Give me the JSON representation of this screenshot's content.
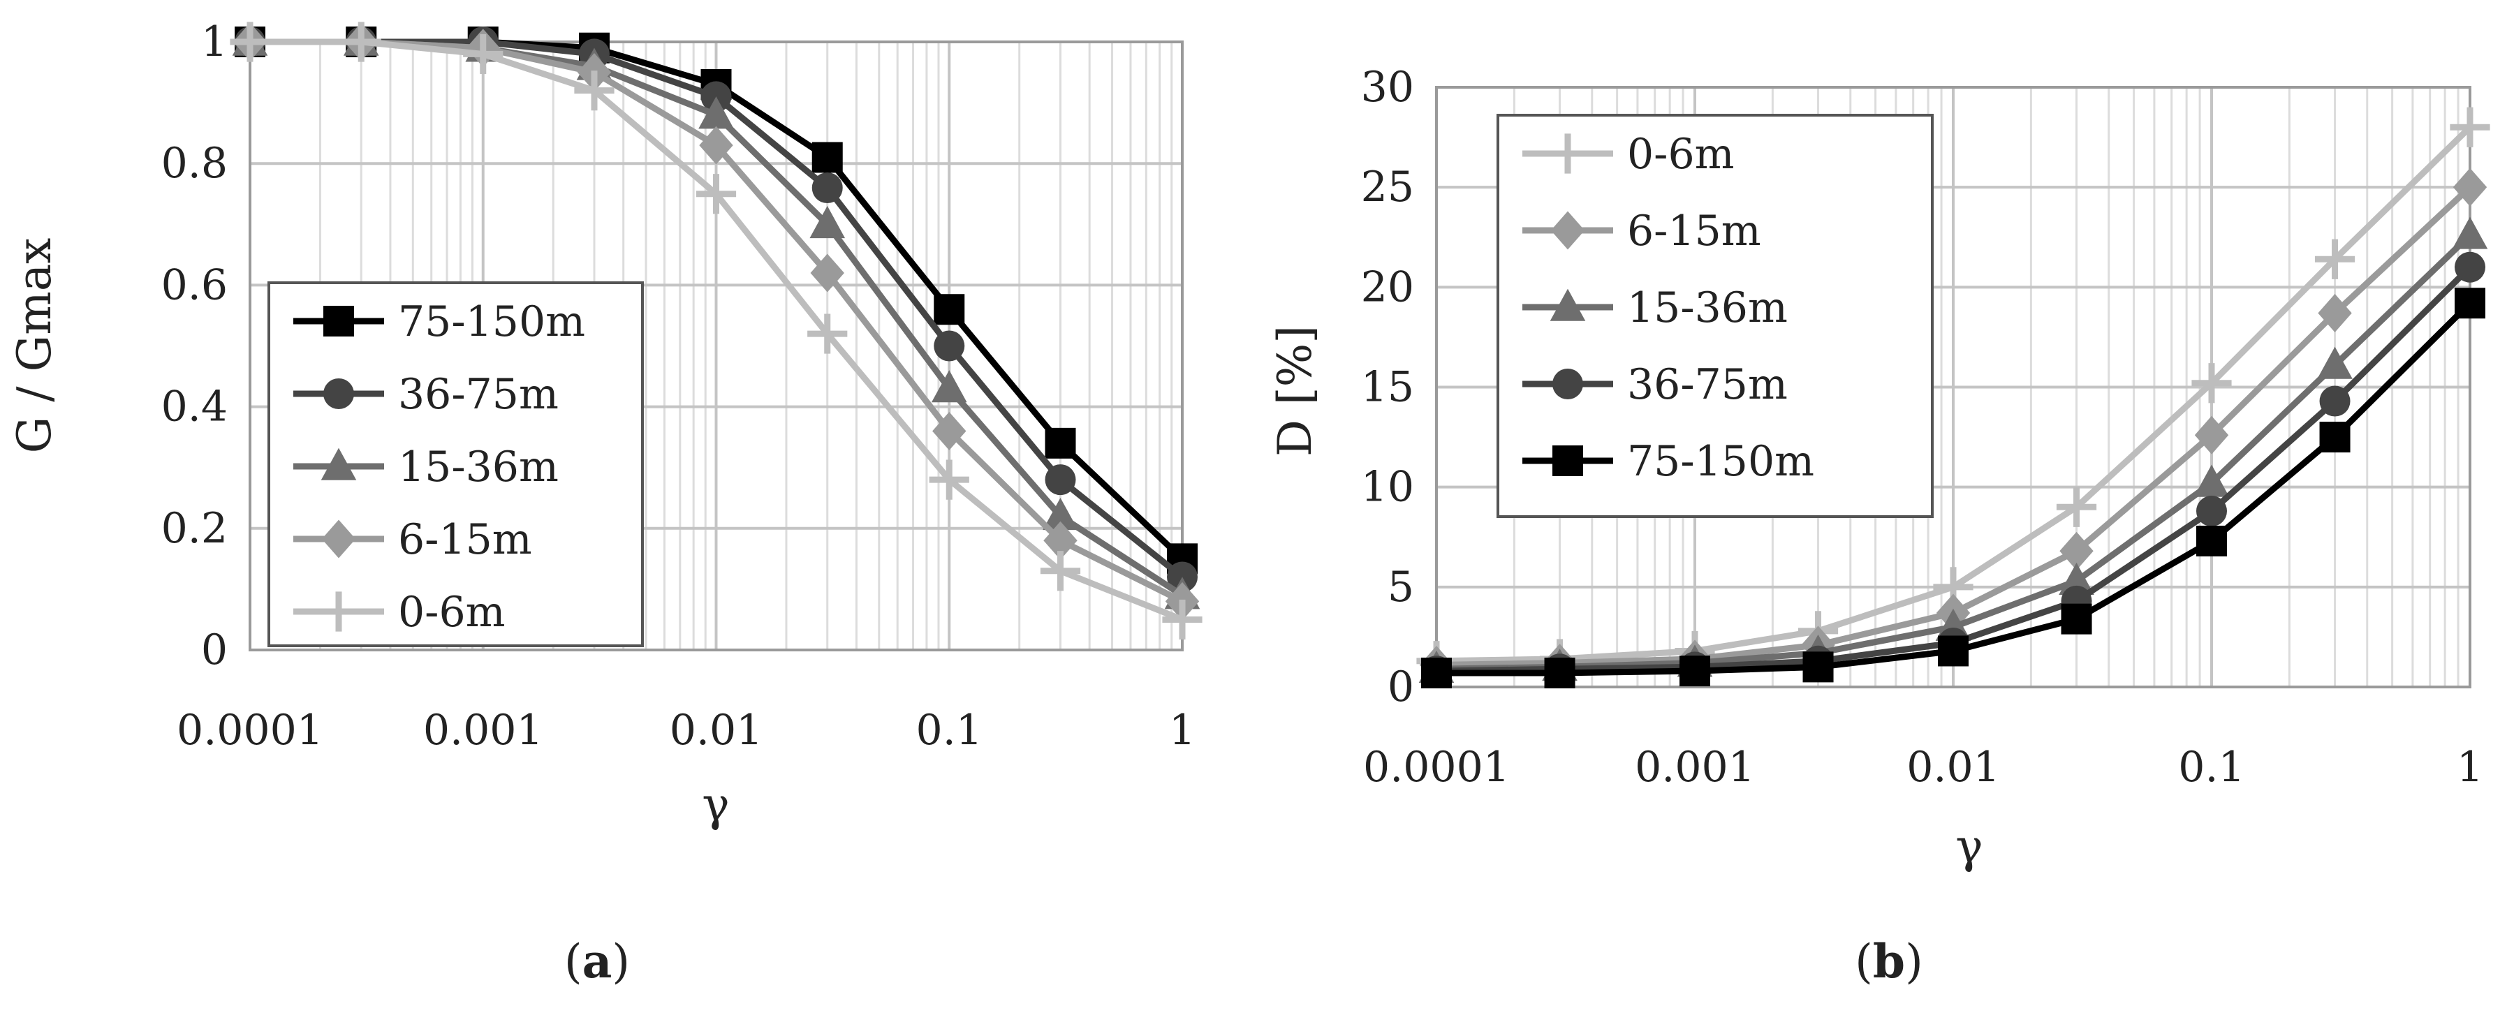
{
  "chart_data": [
    {
      "type": "line",
      "panel_label": "(a)",
      "panel_letter": "a",
      "xlabel": "γ",
      "ylabel": "G / Gmax",
      "x_scale": "log",
      "xlim": [
        0.0001,
        1
      ],
      "ylim": [
        0,
        1
      ],
      "x_ticks": [
        0.0001,
        0.001,
        0.01,
        0.1,
        1
      ],
      "x_tick_labels": [
        "0.0001",
        "0.001",
        "0.01",
        "0.1",
        "1"
      ],
      "y_ticks": [
        0,
        0.2,
        0.4,
        0.6,
        0.8,
        1
      ],
      "y_tick_labels": [
        "0",
        "0.2",
        "0.4",
        "0.6",
        "0.8",
        "1"
      ],
      "grid": true,
      "legend_position": "lower-left",
      "x": [
        0.0001,
        0.0003,
        0.001,
        0.003,
        0.01,
        0.03,
        0.1,
        0.3,
        1
      ],
      "series": [
        {
          "name": "75-150m",
          "marker": "square",
          "color": "#000000",
          "values": [
            1,
            1,
            1,
            0.99,
            0.93,
            0.81,
            0.56,
            0.34,
            0.15
          ]
        },
        {
          "name": "36-75m",
          "marker": "circle",
          "color": "#444444",
          "values": [
            1,
            1,
            1,
            0.98,
            0.91,
            0.76,
            0.5,
            0.28,
            0.12
          ]
        },
        {
          "name": "15-36m",
          "marker": "triangle",
          "color": "#6e6e6e",
          "values": [
            1,
            1,
            0.99,
            0.96,
            0.88,
            0.7,
            0.43,
            0.22,
            0.09
          ]
        },
        {
          "name": "6-15m",
          "marker": "diamond",
          "color": "#9a9a9a",
          "values": [
            1,
            1,
            0.99,
            0.95,
            0.83,
            0.62,
            0.36,
            0.18,
            0.08
          ]
        },
        {
          "name": "0-6m",
          "marker": "plus",
          "color": "#bdbdbd",
          "values": [
            1,
            1,
            0.98,
            0.92,
            0.75,
            0.52,
            0.28,
            0.13,
            0.05
          ]
        }
      ]
    },
    {
      "type": "line",
      "panel_label": "(b)",
      "panel_letter": "b",
      "xlabel": "γ",
      "ylabel": "D [%]",
      "x_scale": "log",
      "xlim": [
        0.0001,
        1
      ],
      "ylim": [
        0,
        30
      ],
      "x_ticks": [
        0.0001,
        0.001,
        0.01,
        0.1,
        1
      ],
      "x_tick_labels": [
        "0.0001",
        "0.001",
        "0.01",
        "0.1",
        "1"
      ],
      "y_ticks": [
        0,
        5,
        10,
        15,
        20,
        25,
        30
      ],
      "y_tick_labels": [
        "0",
        "5",
        "10",
        "15",
        "20",
        "25",
        "30"
      ],
      "grid": true,
      "legend_position": "upper-left",
      "x": [
        0.0001,
        0.0003,
        0.001,
        0.003,
        0.01,
        0.03,
        0.1,
        0.3,
        1
      ],
      "series": [
        {
          "name": "0-6m",
          "marker": "plus",
          "color": "#bdbdbd",
          "values": [
            1.3,
            1.4,
            1.8,
            2.8,
            5.0,
            9.0,
            15.2,
            21.4,
            28.0
          ]
        },
        {
          "name": "6-15m",
          "marker": "diamond",
          "color": "#9a9a9a",
          "values": [
            1.1,
            1.2,
            1.4,
            2.1,
            3.7,
            6.8,
            12.6,
            18.7,
            25.0
          ]
        },
        {
          "name": "15-36m",
          "marker": "triangle",
          "color": "#6e6e6e",
          "values": [
            0.9,
            1.0,
            1.2,
            1.7,
            3.0,
            5.3,
            10.2,
            16.1,
            22.6
          ]
        },
        {
          "name": "36-75m",
          "marker": "circle",
          "color": "#444444",
          "values": [
            0.8,
            0.9,
            1.0,
            1.3,
            2.2,
            4.3,
            8.8,
            14.3,
            21.0
          ]
        },
        {
          "name": "75-150m",
          "marker": "square",
          "color": "#000000",
          "values": [
            0.7,
            0.7,
            0.8,
            1.0,
            1.8,
            3.4,
            7.3,
            12.5,
            19.2
          ]
        }
      ]
    }
  ]
}
